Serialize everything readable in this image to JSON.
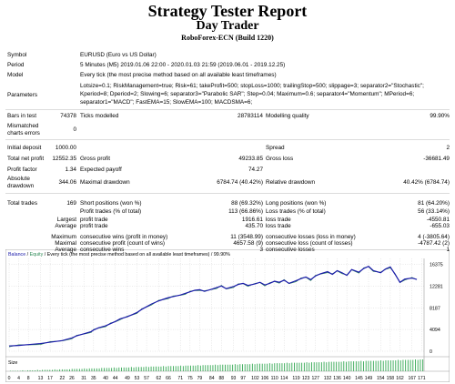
{
  "report": {
    "title": "Strategy Tester Report",
    "expert": "Day Trader",
    "server": "RoboForex-ECN (Build 1220)"
  },
  "settings": {
    "symbol_label": "Symbol",
    "symbol_value": "EURUSD (Euro vs US Dollar)",
    "period_label": "Period",
    "period_value": "5 Minutes (M5) 2019.01.06 22:00 - 2020.01.03 21:59 (2019.06.01 - 2019.12.25)",
    "model_label": "Model",
    "model_value": "Every tick (the most precise method based on all available least timeframes)",
    "parameters_label": "Parameters",
    "parameters_lines": [
      "Lotsize=0.1; RiskManagement=true; Risk=61; takeProfit=500; stopLoss=1000; trailingStop=500; slippage=3; separator2=\"Stochastic\";",
      "Kperiod=8; Dperiod=2; Slowing=6; separator3=\"Parabolic SAR\"; Step=0.04; Maximum=0.6; separator4=\"Momentum\"; MPeriod=6;",
      "separator1=\"MACD\"; FastEMA=15; SlowEMA=100; MACDSMA=6;"
    ]
  },
  "stats": {
    "bars_in_test_label": "Bars in test",
    "bars_in_test_value": "74378",
    "ticks_modelled_label": "Ticks modelled",
    "ticks_modelled_value": "28783114",
    "modelling_quality_label": "Modelling quality",
    "modelling_quality_value": "99.90%",
    "mismatched_label_1": "Mismatched",
    "mismatched_label_2": "charts errors",
    "mismatched_value": "0",
    "initial_deposit_label": "Initial deposit",
    "initial_deposit_value": "1000.00",
    "spread_label": "Spread",
    "spread_value": "2",
    "total_net_profit_label": "Total net profit",
    "total_net_profit_value": "12552.35",
    "gross_profit_label": "Gross profit",
    "gross_profit_value": "49233.85",
    "gross_loss_label": "Gross loss",
    "gross_loss_value": "-36681.49",
    "profit_factor_label": "Profit factor",
    "profit_factor_value": "1.34",
    "expected_payoff_label": "Expected payoff",
    "expected_payoff_value": "74.27",
    "absolute_drawdown_label_1": "Absolute",
    "absolute_drawdown_label_2": "drawdown",
    "absolute_drawdown_value": "344.06",
    "maximal_drawdown_label": "Maximal drawdown",
    "maximal_drawdown_value": "6784.74 (40.42%)",
    "relative_drawdown_label": "Relative drawdown",
    "relative_drawdown_value": "40.42% (6784.74)",
    "total_trades_label": "Total trades",
    "total_trades_value": "169",
    "short_positions_label": "Short positions (won %)",
    "short_positions_value": "88 (69.32%)",
    "long_positions_label": "Long positions (won %)",
    "long_positions_value": "81 (64.20%)",
    "profit_trades_label": "Profit trades (% of total)",
    "profit_trades_value": "113 (66.86%)",
    "loss_trades_label": "Loss trades (% of total)",
    "loss_trades_value": "56 (33.14%)",
    "largest_label": "Largest",
    "largest_profit_label": "profit trade",
    "largest_profit_value": "1916.61",
    "largest_loss_label": "loss trade",
    "largest_loss_value": "-4550.81",
    "average_label": "Average",
    "average_profit_label": "profit trade",
    "average_profit_value": "435.70",
    "average_loss_label": "loss trade",
    "average_loss_value": "-655.03",
    "maximum_label": "Maximum",
    "max_consec_wins_label": "consecutive wins (profit in money)",
    "max_consec_wins_value": "11 (3548.99)",
    "max_consec_losses_label": "consecutive losses (loss in money)",
    "max_consec_losses_value": "4 (-3805.64)",
    "maximal_label": "Maximal",
    "maximal_consec_profit_label": "consecutive profit (count of wins)",
    "maximal_consec_profit_value": "4657.58 (9)",
    "maximal_consec_loss_label": "consecutive loss (count of losses)",
    "maximal_consec_loss_value": "-4787.42 (2)",
    "average2_label": "Average",
    "avg_consec_wins_label": "consecutive wins",
    "avg_consec_wins_value": "3",
    "avg_consec_losses_label": "consecutive losses",
    "avg_consec_losses_value": "1"
  },
  "chart_data": {
    "type": "line",
    "legend_balance": "Balance",
    "legend_sep": " / ",
    "legend_equity": "Equity",
    "legend_rest": " / Every tick (the most precise method based on all available least timeframes) / 99.90%",
    "size_label": "Size",
    "y_ticks": [
      "16375",
      "12281",
      "8187",
      "4094",
      "0"
    ],
    "ylim": [
      0,
      17500
    ],
    "xlim": [
      0,
      172
    ],
    "x_ticks": [
      "0",
      "4",
      "8",
      "13",
      "17",
      "22",
      "26",
      "31",
      "35",
      "40",
      "44",
      "49",
      "53",
      "57",
      "62",
      "66",
      "71",
      "75",
      "79",
      "84",
      "88",
      "93",
      "97",
      "102",
      "106",
      "110",
      "114",
      "119",
      "123",
      "127",
      "132",
      "136",
      "140",
      "145",
      "149",
      "154",
      "158",
      "162",
      "167",
      "171"
    ],
    "series": [
      {
        "name": "Balance",
        "color": "#1a1aaa",
        "x": [
          0,
          4,
          8,
          13,
          17,
          22,
          26,
          28,
          31,
          34,
          35,
          37,
          40,
          42,
          44,
          46,
          49,
          51,
          53,
          55,
          57,
          59,
          62,
          64,
          66,
          68,
          71,
          73,
          75,
          77,
          79,
          81,
          84,
          86,
          88,
          90,
          93,
          95,
          97,
          99,
          102,
          104,
          106,
          108,
          110,
          112,
          114,
          116,
          119,
          121,
          123,
          125,
          127,
          129,
          132,
          134,
          136,
          138,
          140,
          142,
          145,
          147,
          149,
          151,
          154,
          156,
          158,
          160,
          162,
          164,
          167,
          169
        ],
        "y": [
          1000,
          1100,
          1250,
          1450,
          1700,
          2000,
          2500,
          2900,
          3300,
          3700,
          4000,
          4400,
          4800,
          5200,
          5600,
          6100,
          6500,
          6900,
          7300,
          7900,
          8400,
          8900,
          9500,
          9800,
          10100,
          10300,
          10600,
          10900,
          11200,
          11500,
          11600,
          11300,
          11700,
          12000,
          12300,
          11800,
          12200,
          12600,
          12800,
          12400,
          12700,
          13000,
          12500,
          12800,
          13200,
          13000,
          13400,
          12800,
          13300,
          13700,
          14000,
          13500,
          14200,
          14600,
          15000,
          14500,
          15200,
          14800,
          14300,
          15400,
          14900,
          15600,
          16000,
          15200,
          14800,
          15500,
          15900,
          14500,
          13000,
          13600,
          13800,
          13550
        ]
      }
    ],
    "size_bars": [
      1,
      1,
      1,
      1,
      1,
      2,
      1,
      2,
      2,
      2,
      2,
      3,
      2,
      3,
      3,
      3,
      3,
      3,
      4,
      3,
      4,
      4,
      4,
      4,
      4,
      5,
      5,
      5,
      5,
      5,
      6,
      5,
      6,
      6,
      6,
      6,
      6,
      7,
      7,
      7,
      7,
      7,
      8,
      7,
      8,
      8,
      8,
      8,
      8,
      9,
      8,
      9,
      9,
      9,
      9,
      10,
      9,
      10,
      10,
      10,
      10,
      10,
      11,
      10,
      11,
      11,
      11,
      11,
      11,
      12,
      11,
      12,
      12,
      12,
      12,
      12,
      13,
      12,
      13,
      13,
      13,
      13,
      13,
      14,
      13,
      14,
      14,
      14,
      14,
      14,
      14,
      15,
      14,
      15,
      15,
      15,
      15,
      15,
      16,
      15,
      16,
      16,
      16,
      16,
      16,
      17,
      16,
      17,
      17,
      17,
      17,
      17,
      18,
      17,
      18,
      18,
      18,
      18,
      18,
      18,
      19,
      18,
      19,
      19,
      19,
      19,
      19,
      20,
      19,
      20,
      20,
      20,
      20,
      20,
      20,
      21,
      20,
      21,
      21,
      21,
      21,
      21,
      22,
      21,
      22,
      22,
      22,
      22,
      22,
      22,
      23,
      22,
      23,
      23,
      23,
      23,
      23,
      24,
      23,
      24,
      24,
      24,
      24,
      24,
      25,
      24,
      25,
      25
    ],
    "colors": {
      "balance": "#1a1aaa",
      "equity": "#2e8b57",
      "size": "#34a853",
      "grid": "#c9c9c9"
    }
  }
}
